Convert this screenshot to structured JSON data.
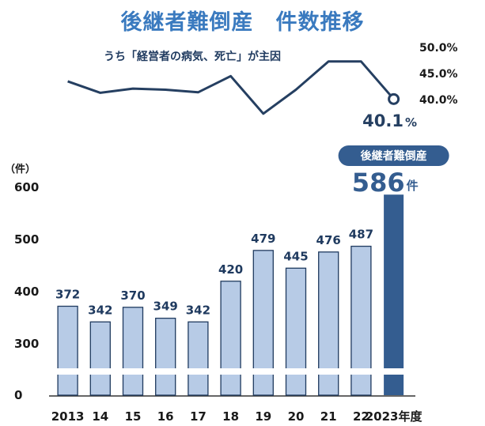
{
  "title": "後継者難倒産　件数推移",
  "colors": {
    "title": "#3a7abf",
    "bar_fill": "#b7cbe6",
    "bar_stroke": "#1f3a5f",
    "highlight_bar": "#345d90",
    "line": "#253f61",
    "text": "#1a1a1a",
    "badge": "#345d90"
  },
  "chart_data": [
    {
      "type": "bar",
      "categories": [
        "2013",
        "14",
        "15",
        "16",
        "17",
        "18",
        "19",
        "20",
        "21",
        "22",
        "2023年度"
      ],
      "values": [
        372,
        342,
        370,
        349,
        342,
        420,
        479,
        445,
        476,
        487,
        586
      ],
      "data_labels": [
        "372",
        "342",
        "370",
        "349",
        "342",
        "420",
        "479",
        "445",
        "476",
        "487",
        ""
      ],
      "highlight_index": 10,
      "highlight_badge": "後継者難倒産",
      "highlight_value_text": "586",
      "highlight_unit": "件",
      "ylabel": "（件）",
      "yticks": [
        "600",
        "500",
        "400",
        "300",
        "0"
      ],
      "ytick_values": [
        600,
        500,
        400,
        300,
        0
      ],
      "axis_break": true
    },
    {
      "type": "line",
      "title": "うち「経営者の病気、死亡」が主因",
      "values": [
        43.5,
        41.3,
        42.1,
        41.9,
        41.4,
        44.5,
        37.3,
        41.9,
        47.3,
        47.3,
        40.1
      ],
      "end_label_value": "40.1",
      "end_label_unit": "%",
      "yticks": [
        "50.0%",
        "45.0%",
        "40.0%"
      ],
      "ytick_values": [
        50,
        45,
        40
      ]
    }
  ]
}
